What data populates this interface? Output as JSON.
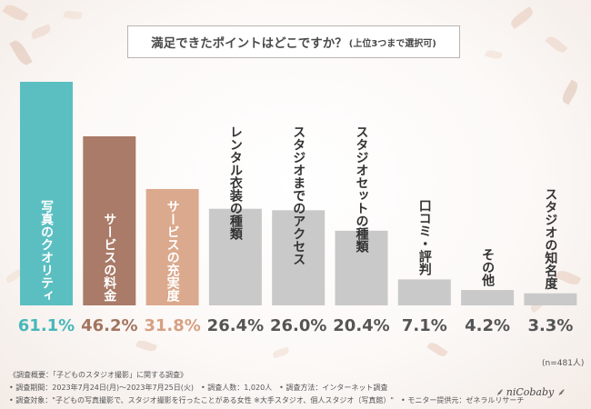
{
  "title": {
    "main": "満足できたポイントはどこですか？",
    "sub": "(上位3つまで選択可)"
  },
  "note": "(n=481人)",
  "footer": {
    "line1": "《調査概要：「子どものスタジオ撮影」に関する調査》",
    "line2": "• 調査期間：2023年7月24日(月)～2023年7月25日(火)　• 調査人数：1,020人　• 調査方法：インターネット調査",
    "line3": "• 調査対象：\"子どもの写真撮影で、スタジオ撮影を行ったことがある女性 ※大手スタジオ、個人スタジオ（写真館）\"　• モニター提供元：ゼネラルリサーチ",
    "brand": "⸙ niCobaby ⸙"
  },
  "colors": {
    "background": "#fbf8f6",
    "bar_1": "#5bbfc2",
    "bar_2": "#a97b68",
    "bar_3": "#dba98d",
    "bar_rest": "#c9c9c9",
    "value_1": "#47b7ba",
    "value_2": "#a2755f",
    "value_3": "#d7a083",
    "value_rest": "#555555"
  },
  "chart_data": {
    "type": "bar",
    "title": "満足できたポイントはどこですか？(上位3つまで選択可)",
    "categories": [
      "写真のクオリティ",
      "サービスの料金",
      "サービスの充実度",
      "レンタル衣装の種類",
      "スタジオまでのアクセス",
      "スタジオセットの種類",
      "口コミ・評判",
      "その他",
      "スタジオの知名度"
    ],
    "values": [
      61.1,
      46.2,
      31.8,
      26.4,
      26.0,
      20.4,
      7.1,
      4.2,
      3.3
    ],
    "labels": [
      "61.1%",
      "46.2%",
      "31.8%",
      "26.4%",
      "26.0%",
      "20.4%",
      "7.1%",
      "4.2%",
      "3.3%"
    ],
    "unit": "%",
    "ylim": [
      0,
      61.1
    ],
    "xlabel": "",
    "ylabel": "",
    "grid": false
  }
}
